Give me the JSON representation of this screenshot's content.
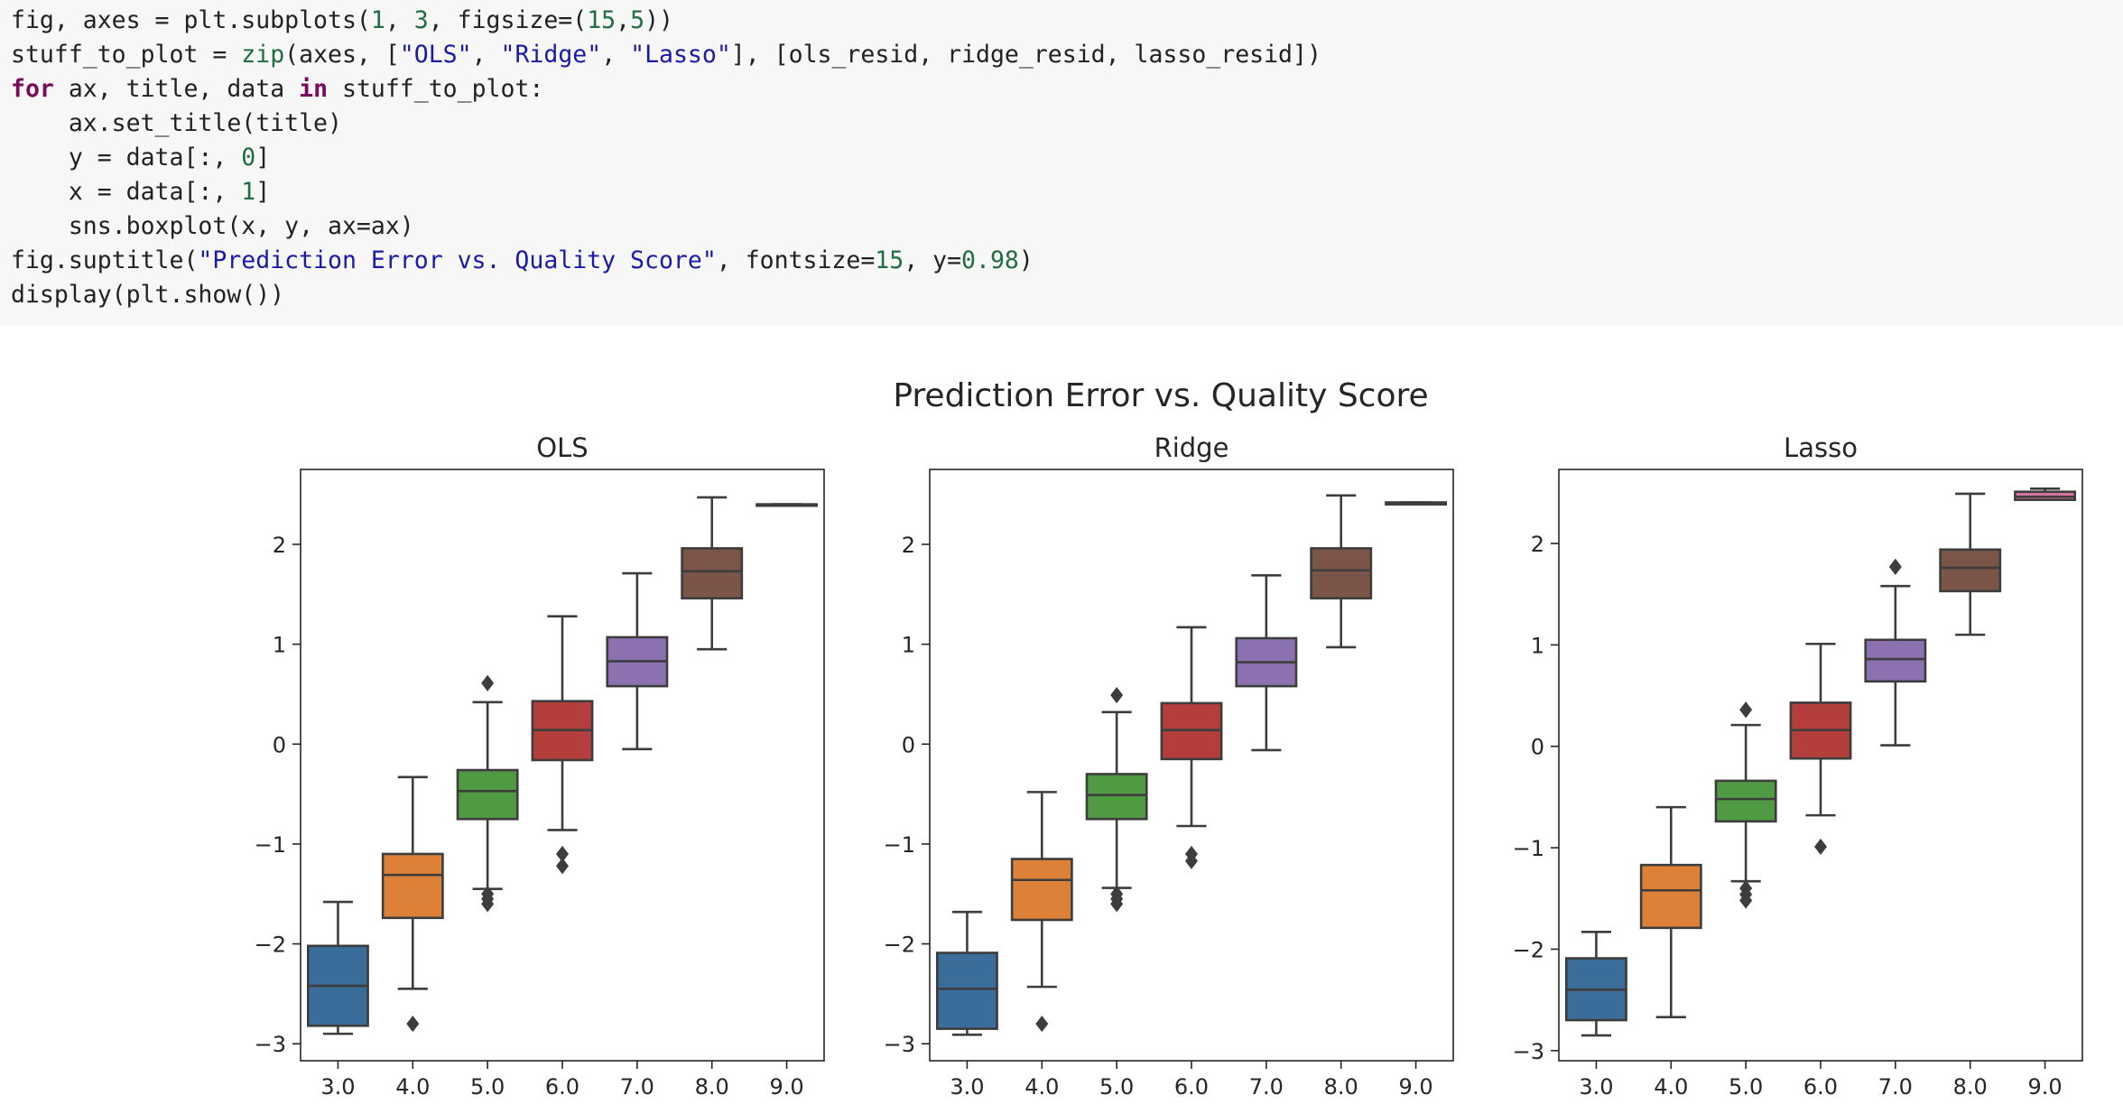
{
  "code_cell": {
    "lines": [
      [
        {
          "t": "fig, axes = plt.subplots(",
          "c": ""
        },
        {
          "t": "1",
          "c": "num"
        },
        {
          "t": ", ",
          "c": ""
        },
        {
          "t": "3",
          "c": "num"
        },
        {
          "t": ", figsize=(",
          "c": ""
        },
        {
          "t": "15",
          "c": "num"
        },
        {
          "t": ",",
          "c": ""
        },
        {
          "t": "5",
          "c": "num"
        },
        {
          "t": "))",
          "c": ""
        }
      ],
      [
        {
          "t": "stuff_to_plot = ",
          "c": ""
        },
        {
          "t": "zip",
          "c": "bi"
        },
        {
          "t": "(axes, [",
          "c": ""
        },
        {
          "t": "\"OLS\"",
          "c": "str"
        },
        {
          "t": ", ",
          "c": ""
        },
        {
          "t": "\"Ridge\"",
          "c": "str"
        },
        {
          "t": ", ",
          "c": ""
        },
        {
          "t": "\"Lasso\"",
          "c": "str"
        },
        {
          "t": "], [ols_resid, ridge_resid, lasso_resid])",
          "c": ""
        }
      ],
      [
        {
          "t": "for",
          "c": "kw"
        },
        {
          "t": " ax, title, data ",
          "c": ""
        },
        {
          "t": "in",
          "c": "kw"
        },
        {
          "t": " stuff_to_plot:",
          "c": ""
        }
      ],
      [
        {
          "t": "    ax.set_title(title)",
          "c": ""
        }
      ],
      [
        {
          "t": "    y = data[:, ",
          "c": ""
        },
        {
          "t": "0",
          "c": "num"
        },
        {
          "t": "]",
          "c": ""
        }
      ],
      [
        {
          "t": "    x = data[:, ",
          "c": ""
        },
        {
          "t": "1",
          "c": "num"
        },
        {
          "t": "]",
          "c": ""
        }
      ],
      [
        {
          "t": "    sns.boxplot(x, y, ax=ax)",
          "c": ""
        }
      ],
      [
        {
          "t": "fig.suptitle(",
          "c": ""
        },
        {
          "t": "\"Prediction Error vs. Quality Score\"",
          "c": "str"
        },
        {
          "t": ", fontsize=",
          "c": ""
        },
        {
          "t": "15",
          "c": "num"
        },
        {
          "t": ", y=",
          "c": ""
        },
        {
          "t": "0.98",
          "c": "num"
        },
        {
          "t": ")",
          "c": ""
        }
      ],
      [
        {
          "t": "display(plt.show())",
          "c": ""
        }
      ]
    ]
  },
  "colors": {
    "box_colors": [
      "#3a6d9a",
      "#dd8139",
      "#4f9a42",
      "#b43e3b",
      "#8c71b0",
      "#7a5548",
      "#d6729e"
    ],
    "line": "#3d3d3d",
    "code_bg": "#f7f7f7"
  },
  "chart_data": {
    "type": "boxplot",
    "suptitle": "Prediction Error vs. Quality Score",
    "categories": [
      "3.0",
      "4.0",
      "5.0",
      "6.0",
      "7.0",
      "8.0",
      "9.0"
    ],
    "yticks": [
      -3,
      -2,
      -1,
      0,
      1,
      2
    ],
    "yticklabels": [
      "−3",
      "−2",
      "−1",
      "0",
      "1",
      "2"
    ],
    "grid": false,
    "panels": [
      {
        "title": "OLS",
        "ylim": [
          -3.17,
          2.75
        ],
        "boxes": [
          {
            "lo": -2.9,
            "q1": -2.82,
            "med": -2.42,
            "q3": -2.02,
            "hi": -1.58,
            "fliers": []
          },
          {
            "lo": -2.45,
            "q1": -1.74,
            "med": -1.31,
            "q3": -1.1,
            "hi": -0.33,
            "fliers": [
              -2.8
            ]
          },
          {
            "lo": -1.45,
            "q1": -0.75,
            "med": -0.47,
            "q3": -0.26,
            "hi": 0.42,
            "fliers": [
              0.61,
              -1.5,
              -1.55,
              -1.6
            ]
          },
          {
            "lo": -0.86,
            "q1": -0.16,
            "med": 0.14,
            "q3": 0.43,
            "hi": 1.28,
            "fliers": [
              -1.1,
              -1.22
            ]
          },
          {
            "lo": -0.05,
            "q1": 0.58,
            "med": 0.83,
            "q3": 1.07,
            "hi": 1.71,
            "fliers": []
          },
          {
            "lo": 0.95,
            "q1": 1.46,
            "med": 1.73,
            "q3": 1.96,
            "hi": 2.47,
            "fliers": []
          },
          {
            "lo": 2.4,
            "q1": 2.4,
            "med": 2.4,
            "q3": 2.4,
            "hi": 2.4,
            "fliers": []
          }
        ]
      },
      {
        "title": "Ridge",
        "ylim": [
          -3.17,
          2.75
        ],
        "boxes": [
          {
            "lo": -2.91,
            "q1": -2.85,
            "med": -2.45,
            "q3": -2.09,
            "hi": -1.68,
            "fliers": []
          },
          {
            "lo": -2.43,
            "q1": -1.76,
            "med": -1.36,
            "q3": -1.15,
            "hi": -0.48,
            "fliers": [
              -2.8
            ]
          },
          {
            "lo": -1.44,
            "q1": -0.75,
            "med": -0.51,
            "q3": -0.3,
            "hi": 0.32,
            "fliers": [
              0.49,
              -1.5,
              -1.55,
              -1.6
            ]
          },
          {
            "lo": -0.82,
            "q1": -0.15,
            "med": 0.14,
            "q3": 0.41,
            "hi": 1.17,
            "fliers": [
              -1.1,
              -1.17
            ]
          },
          {
            "lo": -0.06,
            "q1": 0.58,
            "med": 0.82,
            "q3": 1.06,
            "hi": 1.69,
            "fliers": []
          },
          {
            "lo": 0.97,
            "q1": 1.46,
            "med": 1.74,
            "q3": 1.96,
            "hi": 2.49,
            "fliers": []
          },
          {
            "lo": 2.4,
            "q1": 2.4,
            "med": 2.4,
            "q3": 2.42,
            "hi": 2.42,
            "fliers": []
          }
        ]
      },
      {
        "title": "Lasso",
        "ylim": [
          -3.1,
          2.73
        ],
        "boxes": [
          {
            "lo": -2.85,
            "q1": -2.7,
            "med": -2.4,
            "q3": -2.09,
            "hi": -1.83,
            "fliers": []
          },
          {
            "lo": -2.67,
            "q1": -1.79,
            "med": -1.42,
            "q3": -1.17,
            "hi": -0.6,
            "fliers": []
          },
          {
            "lo": -1.33,
            "q1": -0.74,
            "med": -0.52,
            "q3": -0.34,
            "hi": 0.21,
            "fliers": [
              0.36,
              -1.4,
              -1.46,
              -1.52
            ]
          },
          {
            "lo": -0.68,
            "q1": -0.12,
            "med": 0.16,
            "q3": 0.43,
            "hi": 1.01,
            "fliers": [
              -0.99
            ]
          },
          {
            "lo": 0.01,
            "q1": 0.64,
            "med": 0.86,
            "q3": 1.05,
            "hi": 1.58,
            "fliers": [
              1.77
            ]
          },
          {
            "lo": 1.1,
            "q1": 1.53,
            "med": 1.76,
            "q3": 1.94,
            "hi": 2.49,
            "fliers": []
          },
          {
            "lo": 2.43,
            "q1": 2.43,
            "med": 2.46,
            "q3": 2.51,
            "hi": 2.54,
            "fliers": []
          }
        ]
      }
    ]
  }
}
